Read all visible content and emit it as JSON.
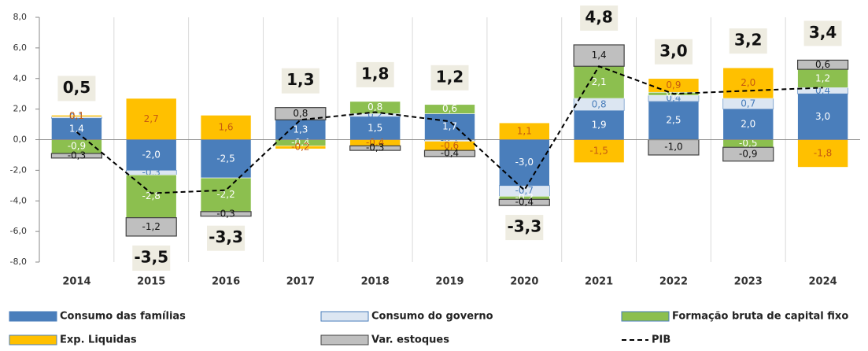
{
  "chart_data": {
    "type": "stacked_bar",
    "categories": [
      "2014",
      "2015",
      "2016",
      "2017",
      "2018",
      "2019",
      "2020",
      "2021",
      "2022",
      "2023",
      "2024"
    ],
    "ylim": [
      -8,
      8
    ],
    "yticks": [
      {
        "value": -8,
        "label": "-8,0"
      },
      {
        "value": -6,
        "label": "-6,0"
      },
      {
        "value": -4,
        "label": "-4,0"
      },
      {
        "value": -2,
        "label": "-2,0"
      },
      {
        "value": 0,
        "label": "0,0"
      },
      {
        "value": 2,
        "label": "2,0"
      },
      {
        "value": 4,
        "label": "4,0"
      },
      {
        "value": 6,
        "label": "6,0"
      },
      {
        "value": 8,
        "label": "8,0"
      }
    ],
    "series": [
      {
        "name": "Consumo das famílias",
        "color": "#4a7ebb",
        "label_color": "#ffffff",
        "values": [
          1.4,
          -2.0,
          -2.5,
          1.3,
          1.5,
          1.7,
          -3.0,
          1.9,
          2.5,
          2.0,
          3.0
        ],
        "value_labels": [
          "1,4",
          "-2,0",
          "-2,5",
          "1,3",
          "1,5",
          "1,7",
          "-3,0",
          "1,9",
          "2,5",
          "2,0",
          "3,0"
        ]
      },
      {
        "name": "Consumo do governo",
        "color": "#dce6f2",
        "label_color": "#4a7ebb",
        "values": [
          0.1,
          -0.3,
          0.0,
          0.0,
          0.2,
          -0.1,
          -0.7,
          0.8,
          0.4,
          0.7,
          0.4
        ],
        "value_labels": [
          "0,1",
          "-0,3",
          "0,0",
          "0,0",
          "0,2",
          "-0,1",
          "-0,7",
          "0,8",
          "0,4",
          "0,7",
          "0,4"
        ]
      },
      {
        "name": "Formação bruta de capital fixo",
        "color": "#8cbf4f",
        "label_color": "#ffffff",
        "values": [
          -0.9,
          -2.8,
          -2.2,
          -0.4,
          0.8,
          0.6,
          -0.2,
          2.1,
          0.2,
          -0.5,
          1.2
        ],
        "value_labels": [
          "-0,9",
          "-2,8",
          "-2,2",
          "-0,4",
          "0,8",
          "0,6",
          "-0,2",
          "2,1",
          "0,2",
          "-0,5",
          "1,2"
        ]
      },
      {
        "name": "Exp. Liquidas",
        "color": "#ffc000",
        "label_color": "#c55a11",
        "values": [
          0.1,
          2.7,
          1.6,
          -0.2,
          -0.4,
          -0.6,
          1.1,
          -1.5,
          0.9,
          2.0,
          -1.8
        ],
        "value_labels": [
          "0,1",
          "2,7",
          "1,6",
          "-0,2",
          "-0,4",
          "-0,6",
          "1,1",
          "-1,5",
          "0,9",
          "2,0",
          "-1,8"
        ]
      },
      {
        "name": "Var. estoques",
        "color": "#bfbfbf",
        "label_color": "#111111",
        "values": [
          -0.3,
          -1.2,
          -0.3,
          0.8,
          -0.3,
          -0.4,
          -0.4,
          1.4,
          -1.0,
          -0.9,
          0.6
        ],
        "value_labels": [
          "-0,3",
          "-1,2",
          "-0,3",
          "0,8",
          "-0,3",
          "-0,4",
          "-0,4",
          "1,4",
          "-1,0",
          "-0,9",
          "0,6"
        ]
      }
    ],
    "line": {
      "name": "PIB",
      "color": "#000000",
      "values": [
        0.5,
        -3.5,
        -3.3,
        1.3,
        1.8,
        1.2,
        -3.3,
        4.8,
        3.0,
        3.2,
        3.4
      ],
      "value_labels": [
        "0,5",
        "-3,5",
        "-3,3",
        "1,3",
        "1,8",
        "1,2",
        "-3,3",
        "4,8",
        "3,0",
        "3,2",
        "3,4"
      ]
    }
  }
}
